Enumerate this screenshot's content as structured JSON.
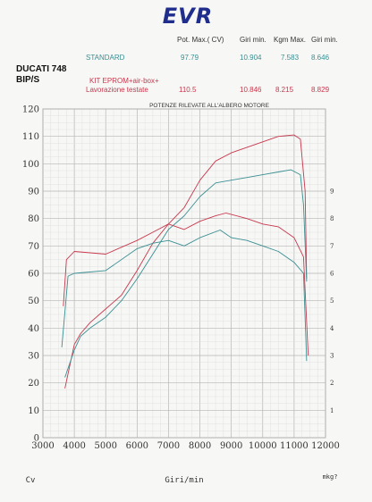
{
  "logo_text": "EVR",
  "table": {
    "headers": [
      "Pot. Max.( CV)",
      "Giri min.",
      "Kgm Max.",
      "Giri min."
    ],
    "rows": [
      {
        "label": "STANDARD",
        "values": [
          "97.79",
          "10.904",
          "7.583",
          "8.646"
        ],
        "color": "#3a8f92"
      },
      {
        "label": "KIT EPROM+air-box+",
        "label2": "Lavorazione testate",
        "values": [
          "110.5",
          "10.846",
          "8.215",
          "8.829"
        ],
        "color": "#c8384d"
      }
    ]
  },
  "bike": {
    "line1": "DUCATI 748",
    "line2": "BIP/S"
  },
  "chart_data": {
    "type": "line",
    "title": "POTENZE RILEVATE ALL'ALBERO MOTORE",
    "xlabel": "Giri/min",
    "ylabel_left": "Cv",
    "ylabel_right": "mkg?",
    "xlim": [
      3000,
      12000
    ],
    "ylim": [
      0,
      120
    ],
    "y2lim": [
      0,
      12
    ],
    "x_ticks": [
      3000,
      4000,
      5000,
      6000,
      7000,
      8000,
      9000,
      10000,
      11000,
      12000
    ],
    "y_ticks": [
      0,
      10,
      20,
      30,
      40,
      50,
      60,
      70,
      80,
      90,
      100,
      110,
      120
    ],
    "y2_ticks": [
      1,
      2,
      3,
      4,
      5,
      6,
      7,
      8,
      9
    ],
    "grid": true,
    "series": [
      {
        "id": "power_kit",
        "axis": "left",
        "color": "#c8384d",
        "points": [
          [
            3700,
            18
          ],
          [
            4000,
            34
          ],
          [
            4200,
            38
          ],
          [
            4500,
            42
          ],
          [
            5000,
            47
          ],
          [
            5500,
            52
          ],
          [
            6000,
            61
          ],
          [
            6500,
            71
          ],
          [
            7000,
            78
          ],
          [
            7500,
            84
          ],
          [
            8000,
            94
          ],
          [
            8500,
            101
          ],
          [
            9000,
            104
          ],
          [
            9500,
            106
          ],
          [
            10000,
            108
          ],
          [
            10500,
            110
          ],
          [
            11000,
            110.5
          ],
          [
            11200,
            109
          ],
          [
            11350,
            90
          ],
          [
            11400,
            58
          ]
        ]
      },
      {
        "id": "power_std",
        "axis": "left",
        "color": "#3a8f92",
        "points": [
          [
            3700,
            22
          ],
          [
            4000,
            32
          ],
          [
            4200,
            37
          ],
          [
            4500,
            40
          ],
          [
            5000,
            44
          ],
          [
            5500,
            50
          ],
          [
            6000,
            58
          ],
          [
            6500,
            67
          ],
          [
            7000,
            76
          ],
          [
            7500,
            81
          ],
          [
            8000,
            88
          ],
          [
            8500,
            93
          ],
          [
            9000,
            94
          ],
          [
            9500,
            95
          ],
          [
            10000,
            96
          ],
          [
            10500,
            97
          ],
          [
            10900,
            97.8
          ],
          [
            11200,
            96
          ],
          [
            11300,
            85
          ],
          [
            11400,
            57
          ]
        ]
      },
      {
        "id": "torque_kit",
        "axis": "right",
        "color": "#c8384d",
        "points": [
          [
            3650,
            4.8
          ],
          [
            3750,
            6.5
          ],
          [
            4000,
            6.8
          ],
          [
            5000,
            6.7
          ],
          [
            6000,
            7.2
          ],
          [
            6500,
            7.5
          ],
          [
            7000,
            7.8
          ],
          [
            7500,
            7.6
          ],
          [
            8000,
            7.9
          ],
          [
            8500,
            8.1
          ],
          [
            8829,
            8.2
          ],
          [
            9500,
            8.0
          ],
          [
            10000,
            7.8
          ],
          [
            10500,
            7.7
          ],
          [
            11000,
            7.3
          ],
          [
            11300,
            6.6
          ],
          [
            11450,
            3.0
          ]
        ]
      },
      {
        "id": "torque_std",
        "axis": "right",
        "color": "#3a8f92",
        "points": [
          [
            3600,
            3.3
          ],
          [
            3800,
            5.9
          ],
          [
            4000,
            6.0
          ],
          [
            5000,
            6.1
          ],
          [
            6000,
            6.9
          ],
          [
            6500,
            7.1
          ],
          [
            7000,
            7.2
          ],
          [
            7500,
            7.0
          ],
          [
            8000,
            7.3
          ],
          [
            8646,
            7.58
          ],
          [
            9000,
            7.3
          ],
          [
            9500,
            7.2
          ],
          [
            10000,
            7.0
          ],
          [
            10500,
            6.8
          ],
          [
            11000,
            6.4
          ],
          [
            11300,
            6.0
          ],
          [
            11400,
            2.8
          ]
        ]
      }
    ]
  }
}
